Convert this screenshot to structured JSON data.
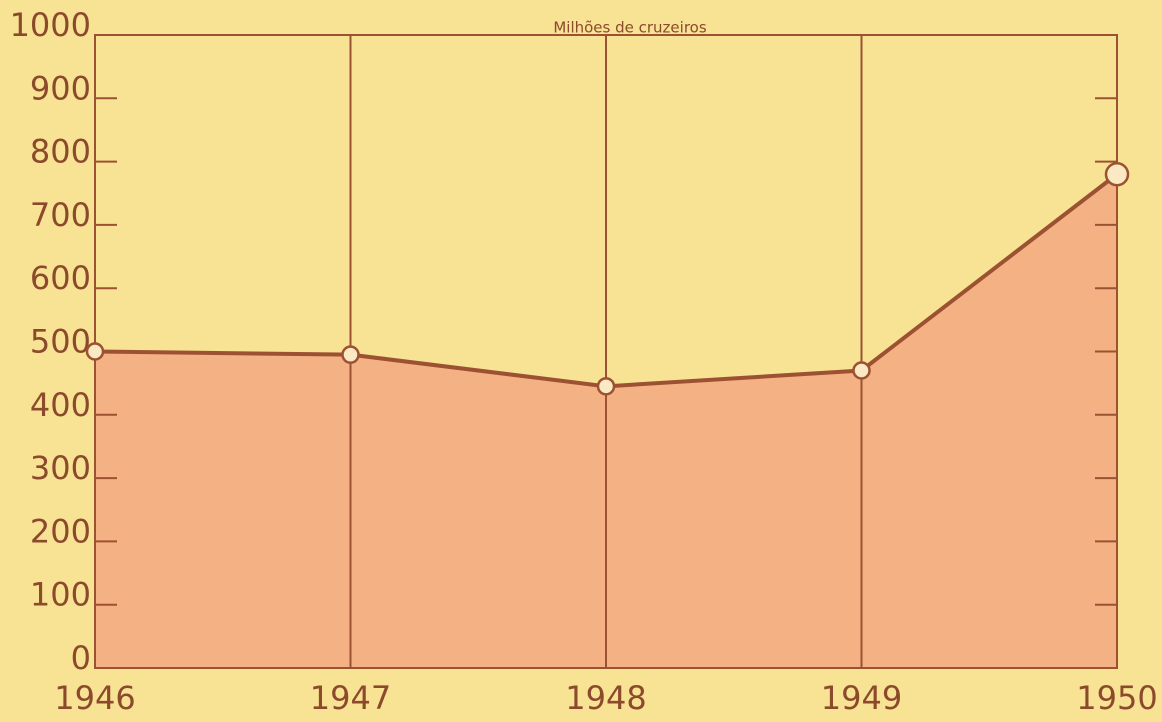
{
  "chart_data": {
    "type": "area",
    "title": "Milhões de cruzeiros",
    "x": [
      1946,
      1947,
      1948,
      1949,
      1950
    ],
    "values": [
      500,
      495,
      445,
      470,
      780
    ],
    "xlim": [
      1946,
      1950
    ],
    "xticks": [
      1946,
      1947,
      1948,
      1949,
      1950
    ],
    "ylim": [
      0,
      1000
    ],
    "yticks": [
      0,
      100,
      200,
      300,
      400,
      500,
      600,
      700,
      800,
      900,
      1000
    ],
    "color": "#f4b183",
    "line_color": "#9c5232",
    "grid": true
  }
}
